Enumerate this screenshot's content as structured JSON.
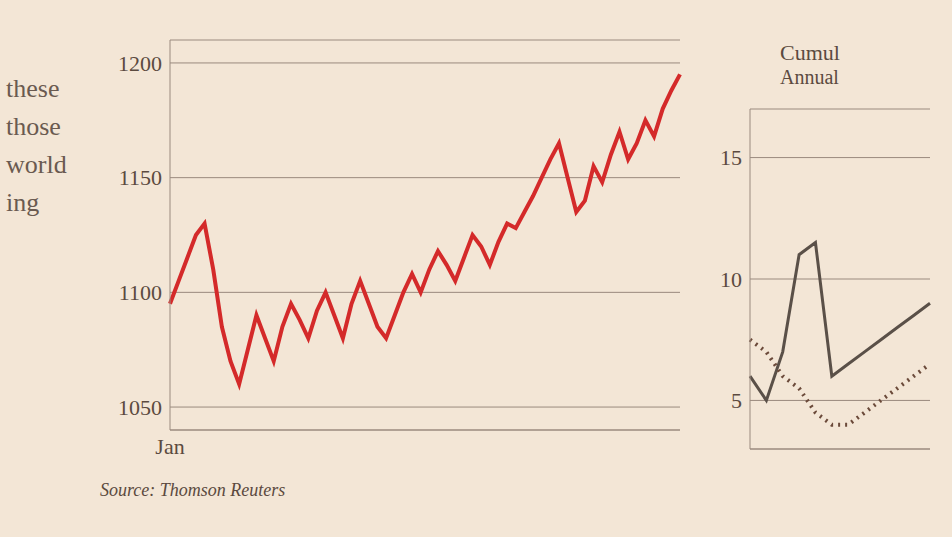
{
  "side_text": [
    "these",
    "those",
    "world",
    "ing"
  ],
  "chart_data": [
    {
      "type": "line",
      "source": "Source: Thomson Reuters",
      "categories": [
        "Jan",
        null,
        null,
        null,
        null,
        null,
        null,
        null,
        null,
        null,
        null,
        null,
        null,
        null,
        null,
        null,
        null,
        null,
        null,
        null,
        null,
        null,
        null,
        null,
        null,
        null,
        null,
        null,
        null,
        null,
        null,
        null,
        null,
        null,
        null,
        null,
        null,
        null,
        null,
        null,
        null,
        null,
        null,
        null,
        null,
        null,
        null,
        null,
        null,
        null,
        null,
        null,
        null,
        null,
        null,
        null,
        null,
        null,
        null,
        null
      ],
      "values": [
        1095,
        1105,
        1115,
        1125,
        1130,
        1110,
        1085,
        1070,
        1060,
        1075,
        1090,
        1080,
        1070,
        1085,
        1095,
        1088,
        1080,
        1092,
        1100,
        1090,
        1080,
        1095,
        1105,
        1095,
        1085,
        1080,
        1090,
        1100,
        1108,
        1100,
        1110,
        1118,
        1112,
        1105,
        1115,
        1125,
        1120,
        1112,
        1122,
        1130,
        1128,
        1135,
        1142,
        1150,
        1158,
        1165,
        1150,
        1135,
        1140,
        1155,
        1148,
        1160,
        1170,
        1158,
        1165,
        1175,
        1168,
        1180,
        1188,
        1195
      ],
      "color": "#d42a2a",
      "ylim": [
        1040,
        1210
      ],
      "yticks": [
        1050,
        1100,
        1150,
        1200
      ],
      "grid": true
    },
    {
      "type": "line",
      "title": "Cumul",
      "subtitle": "Annual",
      "categories": [
        null,
        null,
        null,
        null,
        null,
        null,
        null,
        null,
        null,
        null,
        null,
        null
      ],
      "series": [
        {
          "color": "#5a5048",
          "line_style": "solid",
          "values": [
            6,
            5,
            7,
            11,
            11.5,
            6,
            6.5,
            7,
            7.5,
            8,
            8.5,
            9
          ]
        },
        {
          "color": "#6b4a3a",
          "line_style": "dotted",
          "values": [
            7.5,
            7,
            6,
            5.5,
            4.5,
            4,
            4,
            4.5,
            5,
            5.5,
            6,
            6.5
          ]
        }
      ],
      "ylim": [
        3,
        17
      ],
      "yticks": [
        5,
        10,
        15
      ],
      "grid": true,
      "tick_labels": "y"
    }
  ]
}
